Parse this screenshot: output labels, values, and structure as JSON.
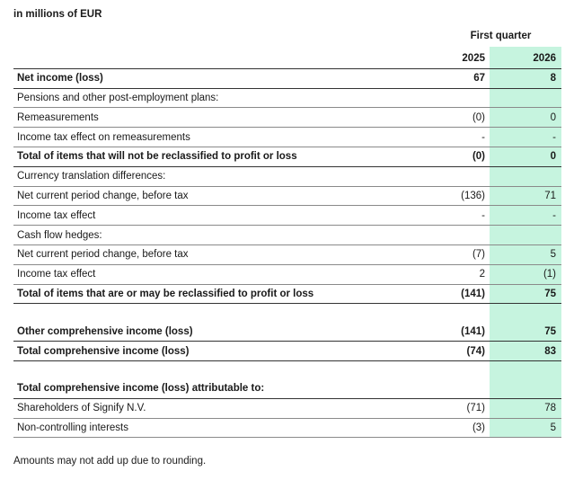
{
  "unit_note": "in millions of EUR",
  "table": {
    "column_group": "First quarter",
    "columns": [
      "2025",
      "2026"
    ],
    "sections": [
      {
        "rows": [
          {
            "label": "Net income (loss)",
            "values": [
              "67",
              "8"
            ],
            "bold": true
          },
          {
            "label": "Pensions and other post-employment plans:"
          },
          {
            "label": "Remeasurements",
            "values": [
              "(0)",
              "0"
            ]
          },
          {
            "label": "Income tax effect on remeasurements",
            "values": [
              "-",
              "-"
            ]
          },
          {
            "label": "Total of items that will not be reclassified to profit or loss",
            "values": [
              "(0)",
              "0"
            ],
            "bold": true
          },
          {
            "label": "Currency translation differences:"
          },
          {
            "label": "Net current period change, before tax",
            "values": [
              "(136)",
              "71"
            ]
          },
          {
            "label": "Income tax effect",
            "values": [
              "-",
              "-"
            ]
          },
          {
            "label": "Cash flow hedges:"
          },
          {
            "label": "Net current period change, before tax",
            "values": [
              "(7)",
              "5"
            ]
          },
          {
            "label": "Income tax effect",
            "values": [
              "2",
              "(1)"
            ]
          },
          {
            "label": "Total of items that are or may be reclassified to profit or loss",
            "values": [
              "(141)",
              "75"
            ],
            "bold": true
          }
        ]
      },
      {
        "rows": [
          {
            "label": "Other comprehensive income (loss)",
            "values": [
              "(141)",
              "75"
            ],
            "bold": true
          },
          {
            "label": "Total comprehensive income (loss)",
            "values": [
              "(74)",
              "83"
            ],
            "bold": true
          }
        ]
      },
      {
        "rows": [
          {
            "label": "Total comprehensive income (loss) attributable to:",
            "bold": true
          },
          {
            "label": "Shareholders of Signify N.V.",
            "values": [
              "(71)",
              "78"
            ]
          },
          {
            "label": "Non-controlling interests",
            "values": [
              "(3)",
              "5"
            ]
          }
        ]
      }
    ]
  },
  "footnote": "Amounts may not add up due to rounding."
}
